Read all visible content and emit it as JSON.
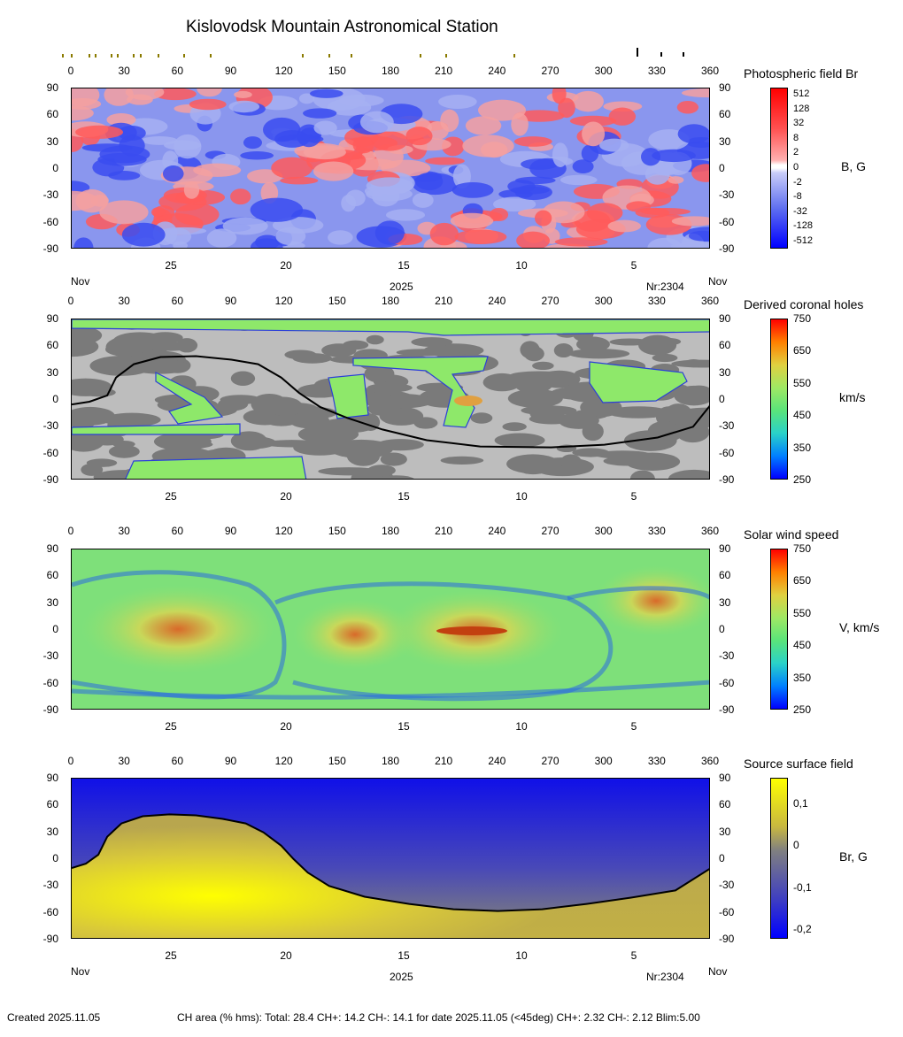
{
  "title": "Kislovodsk Mountain Astronomical Station",
  "footer": {
    "created": "Created  2025.11.05",
    "ch_area": "CH area (% hms): Total: 28.4 CH+: 14.2   CH-: 14.1 for date 2025.11.05 (<45deg) CH+: 2.32    CH-: 2.12 Blim:5.00"
  },
  "shared": {
    "x_ticks": [
      "0",
      "30",
      "60",
      "90",
      "120",
      "150",
      "180",
      "210",
      "240",
      "270",
      "300",
      "330",
      "360"
    ],
    "y_ticks": [
      "90",
      "60",
      "30",
      "0",
      "-30",
      "-60",
      "-90"
    ],
    "day_ticks": [
      "25",
      "20",
      "15",
      "10",
      "5"
    ],
    "month_left": "Nov",
    "month_right": "Nov",
    "year": "2025",
    "rotation": "Nr:2304"
  },
  "chart_data": [
    {
      "type": "heatmap",
      "title": "Photospheric field Br",
      "unit": "B, G",
      "xlim": [
        0,
        360
      ],
      "ylim": [
        -90,
        90
      ],
      "colorbar_ticks": [
        "512",
        "128",
        "32",
        "8",
        "2",
        "0",
        "-2",
        "-8",
        "-32",
        "-128",
        "-512"
      ],
      "colors": {
        "positive": "#ff0000",
        "negative": "#0000ff",
        "zero": "#ffffff"
      }
    },
    {
      "type": "heatmap",
      "title": "Derived coronal holes",
      "unit": "km/s",
      "xlim": [
        0,
        360
      ],
      "ylim": [
        -90,
        90
      ],
      "colorbar_ticks": [
        "750",
        "650",
        "550",
        "450",
        "350",
        "250"
      ],
      "neutral_line": [
        [
          0,
          -5
        ],
        [
          10,
          -2
        ],
        [
          20,
          5
        ],
        [
          25,
          25
        ],
        [
          35,
          40
        ],
        [
          50,
          48
        ],
        [
          70,
          49
        ],
        [
          90,
          45
        ],
        [
          105,
          40
        ],
        [
          118,
          25
        ],
        [
          128,
          8
        ],
        [
          140,
          -8
        ],
        [
          155,
          -20
        ],
        [
          175,
          -33
        ],
        [
          200,
          -45
        ],
        [
          230,
          -52
        ],
        [
          270,
          -53
        ],
        [
          300,
          -50
        ],
        [
          330,
          -42
        ],
        [
          350,
          -30
        ],
        [
          360,
          -5
        ]
      ]
    },
    {
      "type": "heatmap",
      "title": "Solar wind speed",
      "unit": "V, km/s",
      "xlim": [
        0,
        360
      ],
      "ylim": [
        -90,
        90
      ],
      "colorbar_ticks": [
        "750",
        "650",
        "550",
        "450",
        "350",
        "250"
      ]
    },
    {
      "type": "heatmap",
      "title": "Source surface field",
      "unit": "Br, G",
      "xlim": [
        0,
        360
      ],
      "ylim": [
        -90,
        90
      ],
      "colorbar_ticks": [
        "0,1",
        "0",
        "-0,1",
        "-0,2"
      ],
      "colors": {
        "positive": "#ffff00",
        "zero": "#808080",
        "negative": "#0000ff"
      },
      "neutral_line": [
        [
          0,
          -10
        ],
        [
          8,
          -5
        ],
        [
          15,
          5
        ],
        [
          20,
          25
        ],
        [
          28,
          40
        ],
        [
          40,
          48
        ],
        [
          55,
          50
        ],
        [
          70,
          49
        ],
        [
          85,
          45
        ],
        [
          98,
          40
        ],
        [
          108,
          30
        ],
        [
          118,
          15
        ],
        [
          125,
          0
        ],
        [
          133,
          -15
        ],
        [
          145,
          -30
        ],
        [
          165,
          -42
        ],
        [
          190,
          -50
        ],
        [
          215,
          -56
        ],
        [
          240,
          -58
        ],
        [
          265,
          -56
        ],
        [
          290,
          -50
        ],
        [
          315,
          -43
        ],
        [
          340,
          -35
        ],
        [
          360,
          -10
        ]
      ]
    }
  ]
}
